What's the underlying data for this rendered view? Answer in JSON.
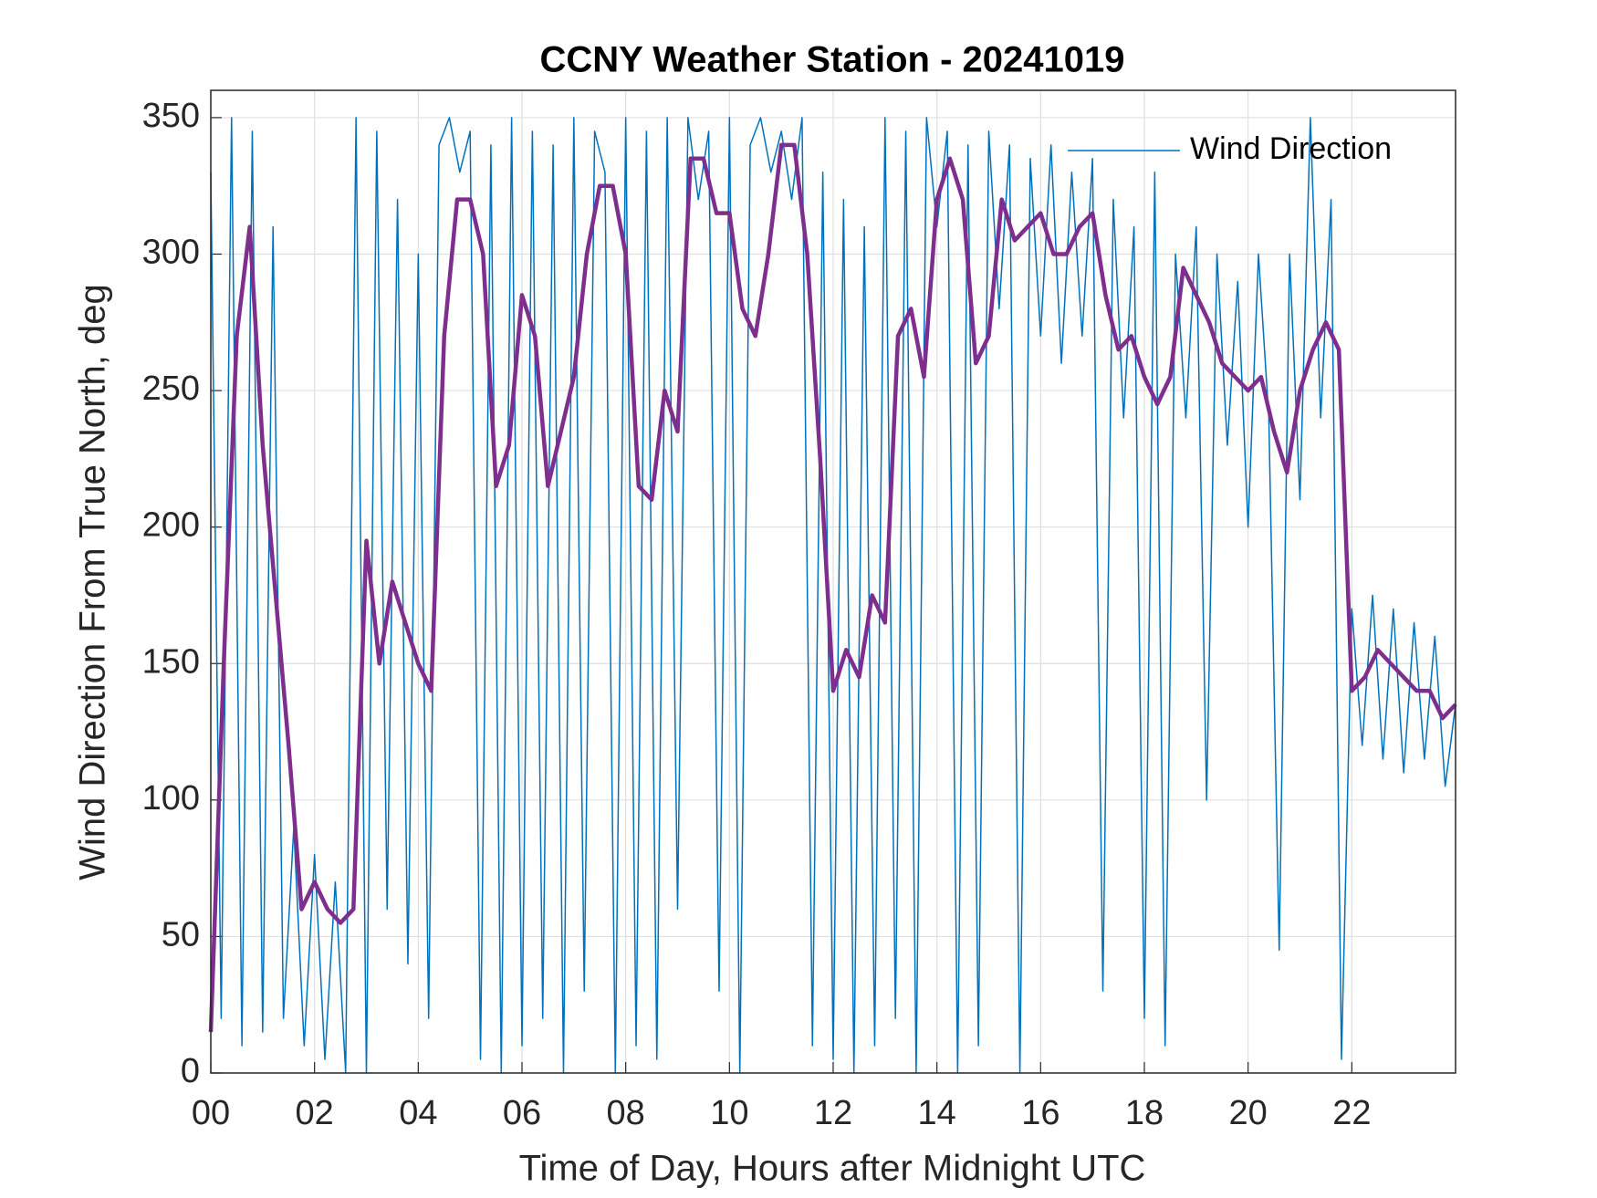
{
  "chart_data": {
    "type": "line",
    "title": "CCNY Weather Station - 20241019",
    "x_label": "Time of Day, Hours after Midnight UTC",
    "y_label": "Wind Direction From True North, deg",
    "xlim": [
      0,
      24
    ],
    "ylim": [
      0,
      360
    ],
    "xticks": [
      {
        "value": 0,
        "label": "00"
      },
      {
        "value": 2,
        "label": "02"
      },
      {
        "value": 4,
        "label": "04"
      },
      {
        "value": 6,
        "label": "06"
      },
      {
        "value": 8,
        "label": "08"
      },
      10,
      12,
      14,
      16,
      18,
      20,
      22
    ],
    "yticks": [
      0,
      50,
      100,
      150,
      200,
      250,
      300,
      350
    ],
    "grid": true,
    "legend": "upper right",
    "series": [
      {
        "name": "Wind Direction",
        "color": "#0072bd",
        "x": [
          0,
          0.2,
          0.4,
          0.6,
          0.8,
          1,
          1.2,
          1.4,
          1.6,
          1.8,
          2,
          2.2,
          2.4,
          2.6,
          2.8,
          3,
          3.2,
          3.4,
          3.6,
          3.8,
          4,
          4.2,
          4.4,
          4.6,
          4.8,
          5,
          5.2,
          5.4,
          5.6,
          5.8,
          6,
          6.2,
          6.4,
          6.6,
          6.8,
          7,
          7.2,
          7.4,
          7.6,
          7.8,
          8,
          8.2,
          8.4,
          8.6,
          8.8,
          9,
          9.2,
          9.4,
          9.6,
          9.8,
          10,
          10.2,
          10.4,
          10.6,
          10.8,
          11,
          11.2,
          11.4,
          11.6,
          11.8,
          12,
          12.2,
          12.4,
          12.6,
          12.8,
          13,
          13.2,
          13.4,
          13.6,
          13.8,
          14,
          14.2,
          14.4,
          14.6,
          14.8,
          15,
          15.2,
          15.4,
          15.6,
          15.8,
          16,
          16.2,
          16.4,
          16.6,
          16.8,
          17,
          17.2,
          17.4,
          17.6,
          17.8,
          18,
          18.2,
          18.4,
          18.6,
          18.8,
          19,
          19.2,
          19.4,
          19.6,
          19.8,
          20,
          20.2,
          20.4,
          20.6,
          20.8,
          21,
          21.2,
          21.4,
          21.6,
          21.8,
          22,
          22.2,
          22.4,
          22.6,
          22.8,
          23,
          23.2,
          23.4,
          23.6,
          23.8,
          24
        ],
        "values": [
          330,
          20,
          350,
          10,
          345,
          15,
          310,
          20,
          90,
          10,
          80,
          5,
          70,
          0,
          350,
          0,
          345,
          60,
          320,
          40,
          300,
          20,
          340,
          350,
          330,
          345,
          5,
          340,
          0,
          350,
          10,
          345,
          20,
          340,
          0,
          350,
          30,
          345,
          330,
          0,
          350,
          10,
          345,
          5,
          350,
          60,
          350,
          320,
          345,
          30,
          350,
          0,
          340,
          350,
          330,
          345,
          320,
          350,
          10,
          330,
          5,
          320,
          0,
          310,
          10,
          350,
          20,
          345,
          0,
          350,
          310,
          345,
          0,
          340,
          10,
          345,
          280,
          340,
          0,
          335,
          270,
          340,
          260,
          330,
          270,
          335,
          30,
          320,
          240,
          310,
          20,
          330,
          10,
          300,
          240,
          310,
          100,
          300,
          230,
          290,
          200,
          300,
          240,
          45,
          300,
          210,
          350,
          240,
          320,
          5,
          170,
          120,
          175,
          115,
          170,
          110,
          165,
          115,
          160,
          105,
          135
        ]
      },
      {
        "color": "#7e2f8e",
        "x": [
          0,
          0.25,
          0.5,
          0.75,
          1,
          1.25,
          1.5,
          1.75,
          2,
          2.25,
          2.5,
          2.75,
          3,
          3.25,
          3.5,
          3.75,
          4,
          4.25,
          4.5,
          4.75,
          5,
          5.25,
          5.5,
          5.75,
          6,
          6.25,
          6.5,
          6.75,
          7,
          7.25,
          7.5,
          7.75,
          8,
          8.25,
          8.5,
          8.75,
          9,
          9.25,
          9.5,
          9.75,
          10,
          10.25,
          10.5,
          10.75,
          11,
          11.25,
          11.5,
          11.75,
          12,
          12.25,
          12.5,
          12.75,
          13,
          13.25,
          13.5,
          13.75,
          14,
          14.25,
          14.5,
          14.75,
          15,
          15.25,
          15.5,
          15.75,
          16,
          16.25,
          16.5,
          16.75,
          17,
          17.25,
          17.5,
          17.75,
          18,
          18.25,
          18.5,
          18.75,
          19,
          19.25,
          19.5,
          19.75,
          20,
          20.25,
          20.5,
          20.75,
          21,
          21.25,
          21.5,
          21.75,
          22,
          22.25,
          22.5,
          22.75,
          23,
          23.25,
          23.5,
          23.75,
          24
        ],
        "values": [
          15,
          150,
          270,
          310,
          230,
          175,
          120,
          60,
          70,
          60,
          55,
          60,
          195,
          150,
          180,
          165,
          150,
          140,
          270,
          320,
          320,
          300,
          215,
          230,
          285,
          270,
          215,
          235,
          255,
          300,
          325,
          325,
          300,
          215,
          210,
          250,
          235,
          335,
          335,
          315,
          315,
          280,
          270,
          300,
          340,
          340,
          300,
          225,
          140,
          155,
          145,
          175,
          165,
          270,
          280,
          255,
          320,
          335,
          320,
          260,
          270,
          320,
          305,
          310,
          315,
          300,
          300,
          310,
          315,
          285,
          265,
          270,
          255,
          245,
          255,
          295,
          285,
          275,
          260,
          255,
          250,
          255,
          235,
          220,
          250,
          265,
          275,
          265,
          140,
          145,
          155,
          150,
          145,
          140,
          140,
          130,
          135
        ]
      }
    ]
  }
}
